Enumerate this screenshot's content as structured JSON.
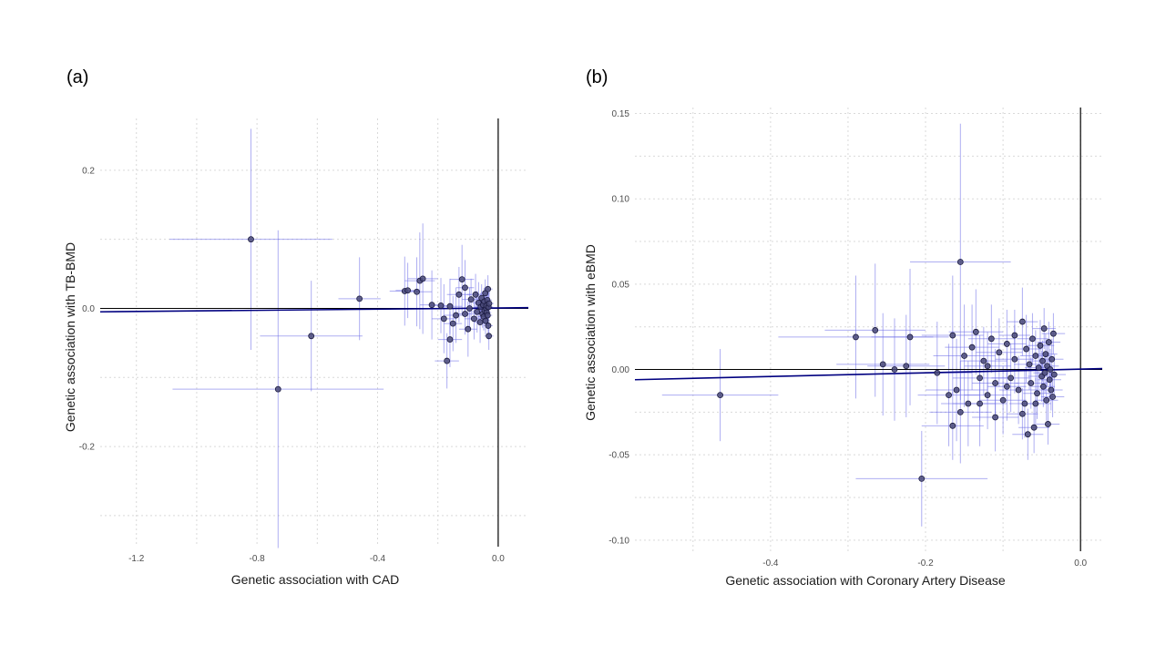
{
  "panels": {
    "a": {
      "label": "(a)"
    },
    "b": {
      "label": "(b)"
    }
  },
  "chart_data": [
    {
      "type": "scatter",
      "title": "",
      "xlabel": "Genetic association with CAD",
      "ylabel": "Genetic association with TB-BMD",
      "xlim": [
        -1.32,
        0.1
      ],
      "ylim": [
        -0.345,
        0.275
      ],
      "xticks": [
        -1.2,
        -0.8,
        -0.4,
        0.0
      ],
      "xtick_labels": [
        "-1.2",
        "-0.8",
        "-0.4",
        "0.0"
      ],
      "yticks": [
        -0.2,
        0.0,
        0.2
      ],
      "ytick_labels": [
        "-0.2",
        "0.0",
        "0.2"
      ],
      "grid": true,
      "error_bars": true,
      "fit_line": {
        "x": [
          -1.32,
          0.1
        ],
        "y": [
          -0.005,
          0.001
        ]
      },
      "points": [
        {
          "x": -0.82,
          "y": 0.1,
          "xerr": 0.27,
          "yerr": 0.16
        },
        {
          "x": -0.73,
          "y": -0.117,
          "xerr": 0.35,
          "yerr": 0.23
        },
        {
          "x": -0.62,
          "y": -0.04,
          "xerr": 0.17,
          "yerr": 0.08
        },
        {
          "x": -0.46,
          "y": 0.014,
          "xerr": 0.07,
          "yerr": 0.06
        },
        {
          "x": -0.31,
          "y": 0.025,
          "xerr": 0.05,
          "yerr": 0.05
        },
        {
          "x": -0.3,
          "y": 0.026,
          "xerr": 0.04,
          "yerr": 0.04
        },
        {
          "x": -0.27,
          "y": 0.024,
          "xerr": 0.05,
          "yerr": 0.05
        },
        {
          "x": -0.26,
          "y": 0.04,
          "xerr": 0.05,
          "yerr": 0.07
        },
        {
          "x": -0.25,
          "y": 0.043,
          "xerr": 0.05,
          "yerr": 0.08
        },
        {
          "x": -0.22,
          "y": 0.005,
          "xerr": 0.04,
          "yerr": 0.05
        },
        {
          "x": -0.19,
          "y": 0.004,
          "xerr": 0.04,
          "yerr": 0.04
        },
        {
          "x": -0.17,
          "y": -0.076,
          "xerr": 0.04,
          "yerr": 0.04
        },
        {
          "x": -0.16,
          "y": -0.045,
          "xerr": 0.04,
          "yerr": 0.04
        },
        {
          "x": -0.15,
          "y": -0.022,
          "xerr": 0.03,
          "yerr": 0.04
        },
        {
          "x": -0.14,
          "y": -0.01,
          "xerr": 0.04,
          "yerr": 0.04
        },
        {
          "x": -0.13,
          "y": 0.02,
          "xerr": 0.04,
          "yerr": 0.04
        },
        {
          "x": -0.12,
          "y": 0.042,
          "xerr": 0.04,
          "yerr": 0.05
        },
        {
          "x": -0.11,
          "y": 0.03,
          "xerr": 0.03,
          "yerr": 0.04
        },
        {
          "x": -0.1,
          "y": -0.03,
          "xerr": 0.03,
          "yerr": 0.04
        },
        {
          "x": -0.09,
          "y": 0.013,
          "xerr": 0.03,
          "yerr": 0.03
        },
        {
          "x": -0.08,
          "y": -0.015,
          "xerr": 0.03,
          "yerr": 0.03
        },
        {
          "x": -0.075,
          "y": 0.02,
          "xerr": 0.03,
          "yerr": 0.03
        },
        {
          "x": -0.07,
          "y": -0.005,
          "xerr": 0.02,
          "yerr": 0.03
        },
        {
          "x": -0.065,
          "y": 0.008,
          "xerr": 0.02,
          "yerr": 0.03
        },
        {
          "x": -0.06,
          "y": -0.02,
          "xerr": 0.02,
          "yerr": 0.03
        },
        {
          "x": -0.058,
          "y": 0.002,
          "xerr": 0.02,
          "yerr": 0.02
        },
        {
          "x": -0.055,
          "y": 0.015,
          "xerr": 0.02,
          "yerr": 0.02
        },
        {
          "x": -0.052,
          "y": -0.008,
          "xerr": 0.02,
          "yerr": 0.02
        },
        {
          "x": -0.05,
          "y": 0.005,
          "xerr": 0.02,
          "yerr": 0.02
        },
        {
          "x": -0.048,
          "y": -0.012,
          "xerr": 0.02,
          "yerr": 0.02
        },
        {
          "x": -0.046,
          "y": 0.01,
          "xerr": 0.02,
          "yerr": 0.02
        },
        {
          "x": -0.045,
          "y": -0.003,
          "xerr": 0.015,
          "yerr": 0.02
        },
        {
          "x": -0.043,
          "y": 0.022,
          "xerr": 0.015,
          "yerr": 0.02
        },
        {
          "x": -0.042,
          "y": -0.018,
          "xerr": 0.015,
          "yerr": 0.02
        },
        {
          "x": -0.04,
          "y": 0.0,
          "xerr": 0.015,
          "yerr": 0.02
        },
        {
          "x": -0.039,
          "y": 0.004,
          "xerr": 0.015,
          "yerr": 0.02
        },
        {
          "x": -0.038,
          "y": -0.006,
          "xerr": 0.015,
          "yerr": 0.02
        },
        {
          "x": -0.036,
          "y": 0.012,
          "xerr": 0.015,
          "yerr": 0.02
        },
        {
          "x": -0.035,
          "y": -0.01,
          "xerr": 0.015,
          "yerr": 0.02
        },
        {
          "x": -0.034,
          "y": 0.028,
          "xerr": 0.015,
          "yerr": 0.02
        },
        {
          "x": -0.033,
          "y": -0.025,
          "xerr": 0.015,
          "yerr": 0.02
        },
        {
          "x": -0.032,
          "y": 0.002,
          "xerr": 0.015,
          "yerr": 0.02
        },
        {
          "x": -0.031,
          "y": -0.04,
          "xerr": 0.015,
          "yerr": 0.02
        },
        {
          "x": -0.03,
          "y": 0.007,
          "xerr": 0.015,
          "yerr": 0.02
        },
        {
          "x": -0.095,
          "y": 0.0,
          "xerr": 0.03,
          "yerr": 0.03
        },
        {
          "x": -0.11,
          "y": -0.008,
          "xerr": 0.03,
          "yerr": 0.03
        },
        {
          "x": -0.16,
          "y": 0.003,
          "xerr": 0.04,
          "yerr": 0.04
        },
        {
          "x": -0.18,
          "y": -0.015,
          "xerr": 0.04,
          "yerr": 0.05
        }
      ]
    },
    {
      "type": "scatter",
      "title": "",
      "xlabel": "Genetic association with Coronary Artery Disease",
      "ylabel": "Genetic association with eBMD",
      "xlim": [
        -0.575,
        0.028
      ],
      "ylim": [
        -0.1065,
        0.1535
      ],
      "xticks": [
        -0.4,
        -0.2,
        0.0
      ],
      "xtick_labels": [
        "-0.4",
        "-0.2",
        "0.0"
      ],
      "yticks": [
        -0.1,
        -0.05,
        0.0,
        0.05,
        0.1,
        0.15
      ],
      "ytick_labels": [
        "-0.10",
        "-0.05",
        "0.00",
        "0.05",
        "0.10",
        "0.15"
      ],
      "grid": true,
      "error_bars": true,
      "fit_line": {
        "x": [
          -0.575,
          0.028
        ],
        "y": [
          -0.006,
          0.0005
        ]
      },
      "points": [
        {
          "x": -0.465,
          "y": -0.015,
          "xerr": 0.075,
          "yerr": 0.027
        },
        {
          "x": -0.29,
          "y": 0.019,
          "xerr": 0.1,
          "yerr": 0.036
        },
        {
          "x": -0.265,
          "y": 0.023,
          "xerr": 0.065,
          "yerr": 0.039
        },
        {
          "x": -0.255,
          "y": 0.003,
          "xerr": 0.06,
          "yerr": 0.03
        },
        {
          "x": -0.22,
          "y": 0.019,
          "xerr": 0.05,
          "yerr": 0.04
        },
        {
          "x": -0.225,
          "y": 0.002,
          "xerr": 0.05,
          "yerr": 0.03
        },
        {
          "x": -0.24,
          "y": 0.0,
          "xerr": 0.05,
          "yerr": 0.03
        },
        {
          "x": -0.205,
          "y": -0.064,
          "xerr": 0.085,
          "yerr": 0.028
        },
        {
          "x": -0.155,
          "y": 0.063,
          "xerr": 0.065,
          "yerr": 0.081
        },
        {
          "x": -0.165,
          "y": 0.02,
          "xerr": 0.04,
          "yerr": 0.035
        },
        {
          "x": -0.165,
          "y": -0.033,
          "xerr": 0.04,
          "yerr": 0.02
        },
        {
          "x": -0.17,
          "y": -0.015,
          "xerr": 0.04,
          "yerr": 0.03
        },
        {
          "x": -0.16,
          "y": -0.012,
          "xerr": 0.04,
          "yerr": 0.03
        },
        {
          "x": -0.15,
          "y": 0.008,
          "xerr": 0.04,
          "yerr": 0.03
        },
        {
          "x": -0.145,
          "y": -0.02,
          "xerr": 0.035,
          "yerr": 0.025
        },
        {
          "x": -0.14,
          "y": 0.013,
          "xerr": 0.035,
          "yerr": 0.025
        },
        {
          "x": -0.135,
          "y": 0.022,
          "xerr": 0.035,
          "yerr": 0.025
        },
        {
          "x": -0.13,
          "y": -0.005,
          "xerr": 0.035,
          "yerr": 0.025
        },
        {
          "x": -0.125,
          "y": 0.005,
          "xerr": 0.03,
          "yerr": 0.02
        },
        {
          "x": -0.12,
          "y": -0.015,
          "xerr": 0.03,
          "yerr": 0.02
        },
        {
          "x": -0.115,
          "y": 0.018,
          "xerr": 0.03,
          "yerr": 0.02
        },
        {
          "x": -0.11,
          "y": -0.008,
          "xerr": 0.03,
          "yerr": 0.02
        },
        {
          "x": -0.105,
          "y": 0.01,
          "xerr": 0.03,
          "yerr": 0.02
        },
        {
          "x": -0.1,
          "y": -0.018,
          "xerr": 0.03,
          "yerr": 0.02
        },
        {
          "x": -0.095,
          "y": 0.015,
          "xerr": 0.025,
          "yerr": 0.02
        },
        {
          "x": -0.09,
          "y": -0.005,
          "xerr": 0.025,
          "yerr": 0.02
        },
        {
          "x": -0.085,
          "y": 0.006,
          "xerr": 0.025,
          "yerr": 0.02
        },
        {
          "x": -0.08,
          "y": -0.012,
          "xerr": 0.025,
          "yerr": 0.02
        },
        {
          "x": -0.075,
          "y": 0.028,
          "xerr": 0.02,
          "yerr": 0.02
        },
        {
          "x": -0.072,
          "y": -0.02,
          "xerr": 0.02,
          "yerr": 0.02
        },
        {
          "x": -0.07,
          "y": 0.012,
          "xerr": 0.02,
          "yerr": 0.02
        },
        {
          "x": -0.068,
          "y": -0.038,
          "xerr": 0.02,
          "yerr": 0.015
        },
        {
          "x": -0.066,
          "y": 0.003,
          "xerr": 0.02,
          "yerr": 0.015
        },
        {
          "x": -0.064,
          "y": -0.008,
          "xerr": 0.02,
          "yerr": 0.015
        },
        {
          "x": -0.062,
          "y": 0.018,
          "xerr": 0.02,
          "yerr": 0.015
        },
        {
          "x": -0.06,
          "y": -0.034,
          "xerr": 0.02,
          "yerr": 0.015
        },
        {
          "x": -0.058,
          "y": 0.008,
          "xerr": 0.02,
          "yerr": 0.015
        },
        {
          "x": -0.056,
          "y": -0.014,
          "xerr": 0.018,
          "yerr": 0.015
        },
        {
          "x": -0.054,
          "y": 0.001,
          "xerr": 0.018,
          "yerr": 0.015
        },
        {
          "x": -0.052,
          "y": 0.014,
          "xerr": 0.018,
          "yerr": 0.015
        },
        {
          "x": -0.05,
          "y": -0.004,
          "xerr": 0.018,
          "yerr": 0.015
        },
        {
          "x": -0.049,
          "y": 0.005,
          "xerr": 0.015,
          "yerr": 0.012
        },
        {
          "x": -0.048,
          "y": -0.01,
          "xerr": 0.015,
          "yerr": 0.012
        },
        {
          "x": -0.047,
          "y": 0.024,
          "xerr": 0.015,
          "yerr": 0.012
        },
        {
          "x": -0.046,
          "y": -0.002,
          "xerr": 0.015,
          "yerr": 0.012
        },
        {
          "x": -0.045,
          "y": 0.009,
          "xerr": 0.015,
          "yerr": 0.012
        },
        {
          "x": -0.044,
          "y": -0.018,
          "xerr": 0.015,
          "yerr": 0.012
        },
        {
          "x": -0.043,
          "y": 0.002,
          "xerr": 0.015,
          "yerr": 0.012
        },
        {
          "x": -0.042,
          "y": -0.032,
          "xerr": 0.015,
          "yerr": 0.012
        },
        {
          "x": -0.041,
          "y": 0.016,
          "xerr": 0.015,
          "yerr": 0.012
        },
        {
          "x": -0.04,
          "y": -0.006,
          "xerr": 0.015,
          "yerr": 0.012
        },
        {
          "x": -0.039,
          "y": 0.0,
          "xerr": 0.015,
          "yerr": 0.012
        },
        {
          "x": -0.038,
          "y": -0.012,
          "xerr": 0.015,
          "yerr": 0.012
        },
        {
          "x": -0.037,
          "y": 0.006,
          "xerr": 0.015,
          "yerr": 0.012
        },
        {
          "x": -0.036,
          "y": -0.016,
          "xerr": 0.015,
          "yerr": 0.012
        },
        {
          "x": -0.035,
          "y": 0.021,
          "xerr": 0.015,
          "yerr": 0.012
        },
        {
          "x": -0.034,
          "y": -0.003,
          "xerr": 0.015,
          "yerr": 0.012
        },
        {
          "x": -0.058,
          "y": -0.02,
          "xerr": 0.02,
          "yerr": 0.015
        },
        {
          "x": -0.075,
          "y": -0.026,
          "xerr": 0.02,
          "yerr": 0.015
        },
        {
          "x": -0.085,
          "y": 0.02,
          "xerr": 0.02,
          "yerr": 0.015
        },
        {
          "x": -0.095,
          "y": -0.01,
          "xerr": 0.025,
          "yerr": 0.02
        },
        {
          "x": -0.11,
          "y": -0.028,
          "xerr": 0.03,
          "yerr": 0.02
        },
        {
          "x": -0.12,
          "y": 0.002,
          "xerr": 0.03,
          "yerr": 0.02
        },
        {
          "x": -0.13,
          "y": -0.02,
          "xerr": 0.035,
          "yerr": 0.025
        },
        {
          "x": -0.185,
          "y": -0.002,
          "xerr": 0.045,
          "yerr": 0.03
        },
        {
          "x": -0.155,
          "y": -0.025,
          "xerr": 0.04,
          "yerr": 0.03
        }
      ]
    }
  ]
}
